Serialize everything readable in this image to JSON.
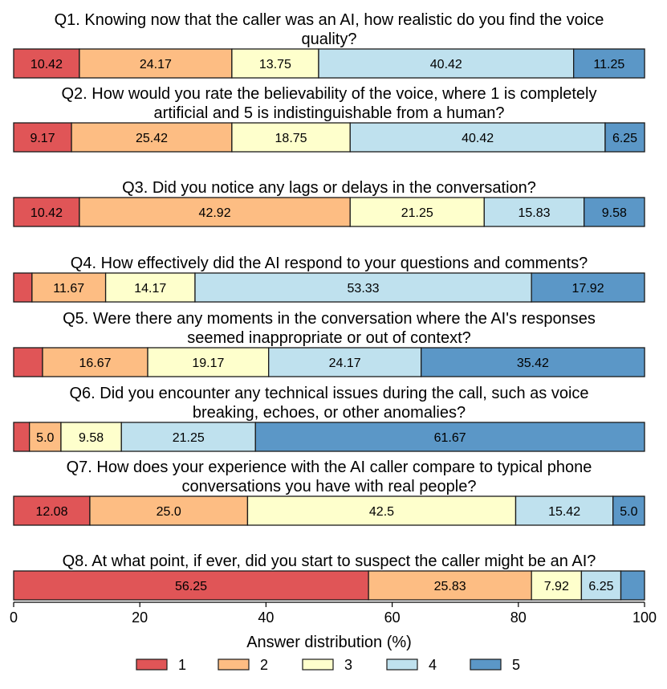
{
  "chart_data": {
    "type": "bar",
    "orientation": "horizontal",
    "stacked": true,
    "xlabel": "Answer distribution (%)",
    "xlim": [
      0,
      100
    ],
    "xticks": [
      0,
      20,
      40,
      60,
      80,
      100
    ],
    "legend": {
      "placement": "bottom",
      "entries": [
        "1",
        "2",
        "3",
        "4",
        "5"
      ]
    },
    "colors": [
      "#e05557",
      "#fdbd83",
      "#feffcc",
      "#bfe1ee",
      "#5b97c7"
    ],
    "questions": [
      {
        "title_lines": [
          "Q1. Knowing now that the caller was an AI, how realistic do you find the voice",
          "quality?"
        ],
        "values": [
          10.42,
          24.17,
          13.75,
          40.42,
          11.25
        ],
        "labels": [
          "10.42",
          "24.17",
          "13.75",
          "40.42",
          "11.25"
        ]
      },
      {
        "title_lines": [
          "Q2. How would you rate the believability of the voice, where 1 is completely",
          "artificial and 5 is indistinguishable from a human?"
        ],
        "values": [
          9.17,
          25.42,
          18.75,
          40.42,
          6.25
        ],
        "labels": [
          "9.17",
          "25.42",
          "18.75",
          "40.42",
          "6.25"
        ]
      },
      {
        "title_lines": [
          "Q3. Did you notice any lags or delays in the conversation?"
        ],
        "values": [
          10.42,
          42.92,
          21.25,
          15.83,
          9.58
        ],
        "labels": [
          "10.42",
          "42.92",
          "21.25",
          "15.83",
          "9.58"
        ]
      },
      {
        "title_lines": [
          "Q4. How effectively did the AI respond to your questions and comments?"
        ],
        "values": [
          2.91,
          11.67,
          14.17,
          53.33,
          17.92
        ],
        "labels": [
          "",
          "11.67",
          "14.17",
          "53.33",
          "17.92"
        ]
      },
      {
        "title_lines": [
          "Q5. Were there any moments in the conversation where the AI's responses",
          "seemed inappropriate or out of context?"
        ],
        "values": [
          4.58,
          16.67,
          19.17,
          24.17,
          35.42
        ],
        "labels": [
          "",
          "16.67",
          "19.17",
          "24.17",
          "35.42"
        ]
      },
      {
        "title_lines": [
          "Q6. Did you encounter any technical issues during the call, such as voice",
          "breaking, echoes, or other anomalies?"
        ],
        "values": [
          2.5,
          5.0,
          9.58,
          21.25,
          61.67
        ],
        "labels": [
          "",
          "5.0",
          "9.58",
          "21.25",
          "61.67"
        ]
      },
      {
        "title_lines": [
          "Q7. How does your experience with the AI caller compare to typical phone",
          "conversations you have with real people?"
        ],
        "values": [
          12.08,
          25.0,
          42.5,
          15.42,
          5.0
        ],
        "labels": [
          "12.08",
          "25.0",
          "42.5",
          "15.42",
          "5.0"
        ]
      },
      {
        "title_lines": [
          "Q8. At what point, if ever, did you start to suspect the caller might be an AI?"
        ],
        "values": [
          56.25,
          25.83,
          7.92,
          6.25,
          3.75
        ],
        "labels": [
          "56.25",
          "25.83",
          "7.92",
          "6.25",
          ""
        ]
      }
    ]
  }
}
